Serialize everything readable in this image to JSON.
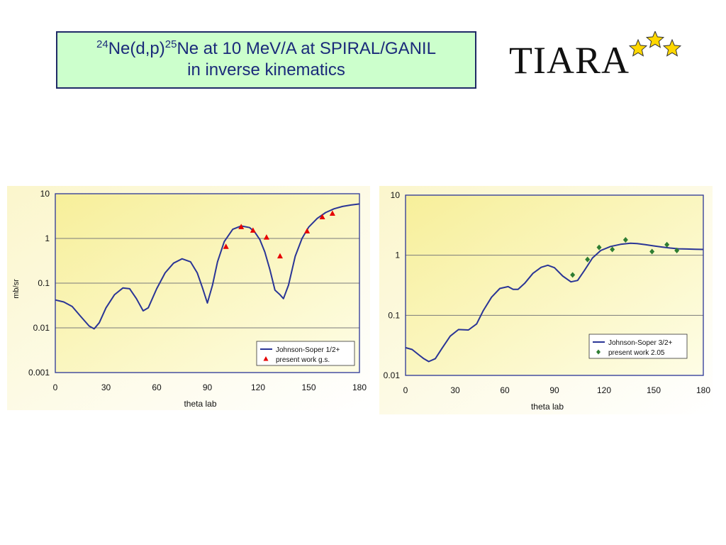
{
  "header": {
    "title_mass_a": "24",
    "title_part1": "Ne(d,p)",
    "title_mass_b": "25",
    "title_part2": "Ne at 10 MeV/A at SPIRAL/GANIL",
    "title_line2": "in inverse kinematics",
    "logo_text": "TIARA",
    "star_color": "#ffd700"
  },
  "chart_data": [
    {
      "type": "line",
      "xlabel": "theta lab",
      "ylabel": "mb/sr",
      "log_y": true,
      "xlim": [
        0,
        180
      ],
      "ylim": [
        0.001,
        10
      ],
      "x_ticks": [
        "0",
        "30",
        "60",
        "90",
        "120",
        "150",
        "180"
      ],
      "y_ticks": [
        "0.001",
        "0.01",
        "0.1",
        "1",
        "10"
      ],
      "grid": "horizontal",
      "legend_position": "bottom-right",
      "line_color": "#2a3596",
      "marker_color": "#e60000",
      "series": [
        {
          "name": "Johnson-Soper 1/2+",
          "kind": "line",
          "x": [
            0,
            5,
            10,
            15,
            20,
            23,
            26,
            30,
            35,
            40,
            44,
            48,
            52,
            55,
            60,
            65,
            70,
            75,
            80,
            84,
            87,
            90,
            93,
            96,
            100,
            105,
            110,
            115,
            118,
            121,
            124,
            127,
            130,
            133,
            135,
            138,
            142,
            146,
            150,
            155,
            160,
            165,
            170,
            175,
            180
          ],
          "y": [
            0.042,
            0.038,
            0.03,
            0.018,
            0.011,
            0.0095,
            0.013,
            0.028,
            0.055,
            0.078,
            0.075,
            0.045,
            0.024,
            0.028,
            0.075,
            0.17,
            0.28,
            0.35,
            0.3,
            0.17,
            0.08,
            0.036,
            0.09,
            0.3,
            0.85,
            1.6,
            1.9,
            1.75,
            1.4,
            0.95,
            0.5,
            0.2,
            0.07,
            0.055,
            0.045,
            0.09,
            0.4,
            1.0,
            1.8,
            2.8,
            3.8,
            4.6,
            5.2,
            5.6,
            5.9
          ]
        },
        {
          "name": "present work g.s.",
          "kind": "marker",
          "marker": "triangle",
          "x": [
            101,
            110,
            117,
            125,
            133,
            149,
            158,
            164
          ],
          "y": [
            0.65,
            1.8,
            1.5,
            1.05,
            0.4,
            1.45,
            3.0,
            3.6
          ]
        }
      ]
    },
    {
      "type": "line",
      "xlabel": "theta lab",
      "ylabel": "",
      "log_y": true,
      "xlim": [
        0,
        180
      ],
      "ylim": [
        0.01,
        10
      ],
      "x_ticks": [
        "0",
        "30",
        "60",
        "90",
        "120",
        "150",
        "180"
      ],
      "y_ticks": [
        "0.01",
        "0.1",
        "1",
        "10"
      ],
      "grid": "horizontal",
      "legend_position": "bottom-right",
      "line_color": "#2a3596",
      "marker_color": "#2e7d32",
      "series": [
        {
          "name": "Johnson-Soper 3/2+",
          "kind": "line",
          "x": [
            0,
            4,
            8,
            11,
            14,
            18,
            22,
            27,
            32,
            38,
            43,
            47,
            52,
            57,
            62,
            65,
            68,
            72,
            77,
            82,
            86,
            90,
            95,
            100,
            104,
            108,
            113,
            118,
            124,
            130,
            136,
            140,
            145,
            150,
            155,
            160,
            165,
            170,
            175,
            180
          ],
          "y": [
            0.029,
            0.027,
            0.022,
            0.019,
            0.017,
            0.019,
            0.028,
            0.045,
            0.058,
            0.057,
            0.072,
            0.12,
            0.2,
            0.28,
            0.3,
            0.27,
            0.27,
            0.34,
            0.5,
            0.63,
            0.68,
            0.62,
            0.45,
            0.36,
            0.38,
            0.55,
            0.9,
            1.2,
            1.4,
            1.52,
            1.58,
            1.56,
            1.5,
            1.43,
            1.37,
            1.32,
            1.28,
            1.27,
            1.26,
            1.25
          ]
        },
        {
          "name": "present work 2.05",
          "kind": "marker",
          "marker": "diamond",
          "x": [
            101,
            110,
            117,
            125,
            133,
            149,
            158,
            164
          ],
          "y": [
            0.47,
            0.85,
            1.35,
            1.25,
            1.8,
            1.15,
            1.5,
            1.2
          ]
        }
      ]
    }
  ]
}
